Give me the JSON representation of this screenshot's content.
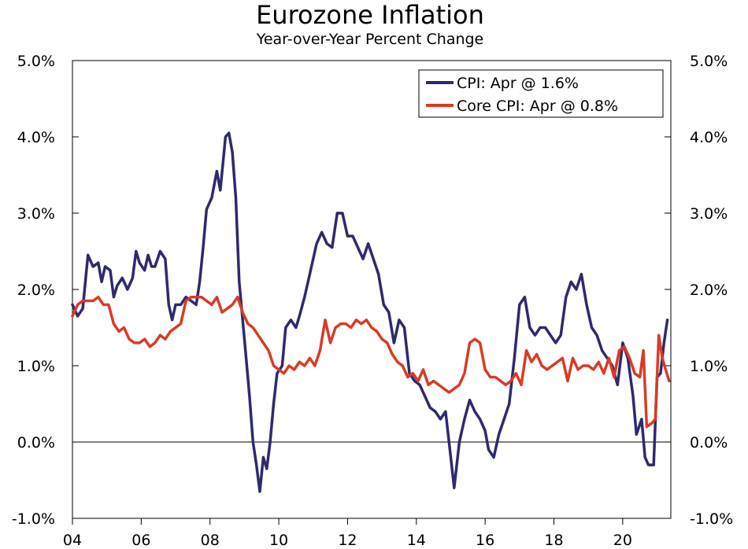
{
  "chart_data": {
    "type": "line",
    "title": "Eurozone Inflation",
    "subtitle": "Year-over-Year Percent Change",
    "xlabel": "",
    "ylabel": "",
    "ylim": [
      -1.0,
      5.0
    ],
    "xlim": [
      2004.0,
      2021.4
    ],
    "y_ticks": [
      {
        "value": 5.0,
        "label": "5.0%"
      },
      {
        "value": 4.0,
        "label": "4.0%"
      },
      {
        "value": 3.0,
        "label": "3.0%"
      },
      {
        "value": 2.0,
        "label": "2.0%"
      },
      {
        "value": 1.0,
        "label": "1.0%"
      },
      {
        "value": 0.0,
        "label": "0.0%"
      },
      {
        "value": -1.0,
        "label": "-1.0%"
      }
    ],
    "x_ticks": [
      {
        "value": 2004,
        "label": "04"
      },
      {
        "value": 2006,
        "label": "06"
      },
      {
        "value": 2008,
        "label": "08"
      },
      {
        "value": 2010,
        "label": "10"
      },
      {
        "value": 2012,
        "label": "12"
      },
      {
        "value": 2014,
        "label": "14"
      },
      {
        "value": 2016,
        "label": "16"
      },
      {
        "value": 2018,
        "label": "18"
      },
      {
        "value": 2020,
        "label": "20"
      }
    ],
    "legend_position": "top-right",
    "series": [
      {
        "name": "CPI: Apr @ 1.6%",
        "color": "#2e2a6e",
        "points": [
          [
            2004.0,
            1.8
          ],
          [
            2004.15,
            1.65
          ],
          [
            2004.3,
            1.75
          ],
          [
            2004.45,
            2.45
          ],
          [
            2004.6,
            2.3
          ],
          [
            2004.75,
            2.35
          ],
          [
            2004.85,
            2.1
          ],
          [
            2004.95,
            2.3
          ],
          [
            2005.1,
            2.25
          ],
          [
            2005.2,
            1.9
          ],
          [
            2005.3,
            2.05
          ],
          [
            2005.45,
            2.15
          ],
          [
            2005.6,
            2.0
          ],
          [
            2005.75,
            2.15
          ],
          [
            2005.85,
            2.5
          ],
          [
            2005.95,
            2.35
          ],
          [
            2006.1,
            2.25
          ],
          [
            2006.2,
            2.45
          ],
          [
            2006.3,
            2.3
          ],
          [
            2006.4,
            2.3
          ],
          [
            2006.55,
            2.5
          ],
          [
            2006.7,
            2.4
          ],
          [
            2006.8,
            1.8
          ],
          [
            2006.9,
            1.6
          ],
          [
            2007.0,
            1.8
          ],
          [
            2007.15,
            1.8
          ],
          [
            2007.3,
            1.9
          ],
          [
            2007.45,
            1.85
          ],
          [
            2007.6,
            1.8
          ],
          [
            2007.7,
            2.1
          ],
          [
            2007.8,
            2.55
          ],
          [
            2007.9,
            3.05
          ],
          [
            2008.05,
            3.2
          ],
          [
            2008.2,
            3.55
          ],
          [
            2008.3,
            3.3
          ],
          [
            2008.45,
            4.0
          ],
          [
            2008.55,
            4.05
          ],
          [
            2008.65,
            3.8
          ],
          [
            2008.75,
            3.2
          ],
          [
            2008.85,
            2.1
          ],
          [
            2008.95,
            1.6
          ],
          [
            2009.05,
            1.1
          ],
          [
            2009.15,
            0.6
          ],
          [
            2009.25,
            0.0
          ],
          [
            2009.35,
            -0.3
          ],
          [
            2009.45,
            -0.65
          ],
          [
            2009.55,
            -0.2
          ],
          [
            2009.65,
            -0.35
          ],
          [
            2009.75,
            0.0
          ],
          [
            2009.85,
            0.5
          ],
          [
            2009.95,
            0.9
          ],
          [
            2010.1,
            1.0
          ],
          [
            2010.2,
            1.5
          ],
          [
            2010.35,
            1.6
          ],
          [
            2010.5,
            1.5
          ],
          [
            2010.6,
            1.65
          ],
          [
            2010.75,
            1.9
          ],
          [
            2010.9,
            2.2
          ],
          [
            2011.1,
            2.6
          ],
          [
            2011.25,
            2.75
          ],
          [
            2011.4,
            2.6
          ],
          [
            2011.55,
            2.55
          ],
          [
            2011.7,
            3.0
          ],
          [
            2011.85,
            3.0
          ],
          [
            2012.0,
            2.7
          ],
          [
            2012.15,
            2.7
          ],
          [
            2012.3,
            2.55
          ],
          [
            2012.45,
            2.4
          ],
          [
            2012.6,
            2.6
          ],
          [
            2012.75,
            2.4
          ],
          [
            2012.9,
            2.2
          ],
          [
            2013.05,
            1.8
          ],
          [
            2013.2,
            1.7
          ],
          [
            2013.35,
            1.3
          ],
          [
            2013.5,
            1.6
          ],
          [
            2013.65,
            1.5
          ],
          [
            2013.8,
            0.9
          ],
          [
            2013.95,
            0.8
          ],
          [
            2014.1,
            0.75
          ],
          [
            2014.25,
            0.6
          ],
          [
            2014.4,
            0.45
          ],
          [
            2014.55,
            0.4
          ],
          [
            2014.7,
            0.3
          ],
          [
            2014.85,
            0.4
          ],
          [
            2015.0,
            -0.2
          ],
          [
            2015.1,
            -0.6
          ],
          [
            2015.25,
            0.0
          ],
          [
            2015.4,
            0.3
          ],
          [
            2015.55,
            0.55
          ],
          [
            2015.7,
            0.4
          ],
          [
            2015.85,
            0.3
          ],
          [
            2016.0,
            0.15
          ],
          [
            2016.1,
            -0.1
          ],
          [
            2016.25,
            -0.2
          ],
          [
            2016.4,
            0.1
          ],
          [
            2016.55,
            0.3
          ],
          [
            2016.7,
            0.5
          ],
          [
            2016.85,
            1.1
          ],
          [
            2017.0,
            1.8
          ],
          [
            2017.15,
            1.9
          ],
          [
            2017.3,
            1.5
          ],
          [
            2017.45,
            1.4
          ],
          [
            2017.6,
            1.5
          ],
          [
            2017.75,
            1.5
          ],
          [
            2017.9,
            1.4
          ],
          [
            2018.05,
            1.3
          ],
          [
            2018.2,
            1.4
          ],
          [
            2018.35,
            1.9
          ],
          [
            2018.5,
            2.1
          ],
          [
            2018.65,
            2.0
          ],
          [
            2018.8,
            2.2
          ],
          [
            2018.95,
            1.8
          ],
          [
            2019.1,
            1.5
          ],
          [
            2019.25,
            1.4
          ],
          [
            2019.4,
            1.2
          ],
          [
            2019.55,
            1.1
          ],
          [
            2019.7,
            1.0
          ],
          [
            2019.85,
            0.75
          ],
          [
            2020.0,
            1.3
          ],
          [
            2020.15,
            1.1
          ],
          [
            2020.3,
            0.6
          ],
          [
            2020.4,
            0.1
          ],
          [
            2020.55,
            0.3
          ],
          [
            2020.65,
            -0.2
          ],
          [
            2020.75,
            -0.3
          ],
          [
            2020.9,
            -0.3
          ],
          [
            2021.0,
            0.85
          ],
          [
            2021.1,
            0.9
          ],
          [
            2021.2,
            1.3
          ],
          [
            2021.3,
            1.6
          ]
        ]
      },
      {
        "name": "Core CPI: Apr @ 0.8%",
        "color": "#d93b26",
        "points": [
          [
            2004.0,
            1.65
          ],
          [
            2004.15,
            1.8
          ],
          [
            2004.3,
            1.85
          ],
          [
            2004.45,
            1.85
          ],
          [
            2004.6,
            1.85
          ],
          [
            2004.75,
            1.9
          ],
          [
            2004.9,
            1.8
          ],
          [
            2005.05,
            1.8
          ],
          [
            2005.2,
            1.55
          ],
          [
            2005.35,
            1.45
          ],
          [
            2005.5,
            1.5
          ],
          [
            2005.65,
            1.35
          ],
          [
            2005.8,
            1.3
          ],
          [
            2005.95,
            1.3
          ],
          [
            2006.1,
            1.35
          ],
          [
            2006.25,
            1.25
          ],
          [
            2006.4,
            1.3
          ],
          [
            2006.55,
            1.4
          ],
          [
            2006.7,
            1.35
          ],
          [
            2006.85,
            1.45
          ],
          [
            2007.0,
            1.5
          ],
          [
            2007.15,
            1.55
          ],
          [
            2007.3,
            1.85
          ],
          [
            2007.45,
            1.9
          ],
          [
            2007.6,
            1.9
          ],
          [
            2007.75,
            1.9
          ],
          [
            2007.9,
            1.85
          ],
          [
            2008.05,
            1.8
          ],
          [
            2008.2,
            1.9
          ],
          [
            2008.35,
            1.7
          ],
          [
            2008.5,
            1.75
          ],
          [
            2008.65,
            1.8
          ],
          [
            2008.8,
            1.9
          ],
          [
            2008.95,
            1.7
          ],
          [
            2009.1,
            1.55
          ],
          [
            2009.25,
            1.5
          ],
          [
            2009.4,
            1.4
          ],
          [
            2009.55,
            1.3
          ],
          [
            2009.7,
            1.2
          ],
          [
            2009.85,
            1.0
          ],
          [
            2010.0,
            0.95
          ],
          [
            2010.15,
            0.9
          ],
          [
            2010.3,
            1.0
          ],
          [
            2010.45,
            0.95
          ],
          [
            2010.6,
            1.05
          ],
          [
            2010.75,
            1.0
          ],
          [
            2010.9,
            1.1
          ],
          [
            2011.05,
            1.0
          ],
          [
            2011.2,
            1.2
          ],
          [
            2011.35,
            1.6
          ],
          [
            2011.5,
            1.3
          ],
          [
            2011.65,
            1.5
          ],
          [
            2011.8,
            1.55
          ],
          [
            2011.95,
            1.55
          ],
          [
            2012.1,
            1.5
          ],
          [
            2012.25,
            1.6
          ],
          [
            2012.4,
            1.55
          ],
          [
            2012.55,
            1.6
          ],
          [
            2012.7,
            1.5
          ],
          [
            2012.85,
            1.45
          ],
          [
            2013.0,
            1.35
          ],
          [
            2013.15,
            1.3
          ],
          [
            2013.3,
            1.15
          ],
          [
            2013.45,
            1.05
          ],
          [
            2013.6,
            1.0
          ],
          [
            2013.75,
            0.85
          ],
          [
            2013.9,
            0.9
          ],
          [
            2014.05,
            0.8
          ],
          [
            2014.2,
            0.95
          ],
          [
            2014.35,
            0.75
          ],
          [
            2014.5,
            0.8
          ],
          [
            2014.65,
            0.75
          ],
          [
            2014.8,
            0.7
          ],
          [
            2014.95,
            0.65
          ],
          [
            2015.1,
            0.7
          ],
          [
            2015.25,
            0.75
          ],
          [
            2015.4,
            0.9
          ],
          [
            2015.55,
            1.3
          ],
          [
            2015.7,
            1.35
          ],
          [
            2015.85,
            1.3
          ],
          [
            2016.0,
            0.95
          ],
          [
            2016.15,
            0.85
          ],
          [
            2016.3,
            0.85
          ],
          [
            2016.45,
            0.8
          ],
          [
            2016.6,
            0.75
          ],
          [
            2016.75,
            0.8
          ],
          [
            2016.9,
            0.9
          ],
          [
            2017.05,
            0.75
          ],
          [
            2017.2,
            1.2
          ],
          [
            2017.35,
            1.05
          ],
          [
            2017.5,
            1.15
          ],
          [
            2017.65,
            1.0
          ],
          [
            2017.8,
            0.95
          ],
          [
            2017.95,
            1.0
          ],
          [
            2018.1,
            1.05
          ],
          [
            2018.25,
            1.1
          ],
          [
            2018.4,
            0.8
          ],
          [
            2018.55,
            1.1
          ],
          [
            2018.7,
            0.95
          ],
          [
            2018.85,
            1.0
          ],
          [
            2019.0,
            1.0
          ],
          [
            2019.15,
            0.95
          ],
          [
            2019.3,
            1.05
          ],
          [
            2019.45,
            0.9
          ],
          [
            2019.6,
            1.1
          ],
          [
            2019.75,
            0.85
          ],
          [
            2019.9,
            1.2
          ],
          [
            2020.05,
            1.25
          ],
          [
            2020.2,
            1.1
          ],
          [
            2020.35,
            0.9
          ],
          [
            2020.5,
            0.85
          ],
          [
            2020.6,
            1.2
          ],
          [
            2020.7,
            0.2
          ],
          [
            2020.85,
            0.25
          ],
          [
            2020.95,
            0.3
          ],
          [
            2021.05,
            1.4
          ],
          [
            2021.15,
            1.1
          ],
          [
            2021.25,
            0.95
          ],
          [
            2021.35,
            0.8
          ]
        ]
      }
    ]
  }
}
